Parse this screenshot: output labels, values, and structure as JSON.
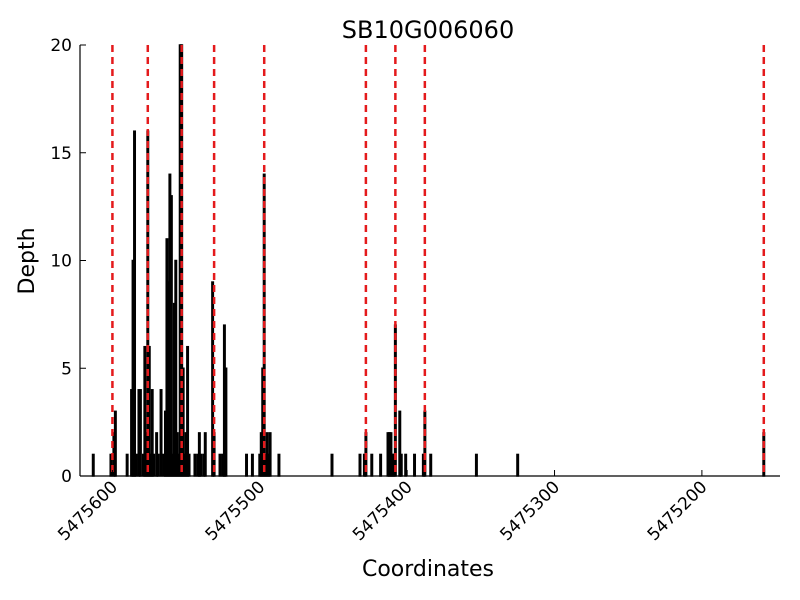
{
  "chart_data": {
    "type": "bar",
    "title": "SB10G006060",
    "xlabel": "Coordinates",
    "ylabel": "Depth",
    "xlim": [
      5475622,
      5475147
    ],
    "ylim": [
      0,
      20
    ],
    "x_reversed": true,
    "grid": false,
    "x_ticks": [
      5475600,
      5475500,
      5475400,
      5475300,
      5475200
    ],
    "x_tick_labels": [
      "5475600",
      "5475500",
      "5475400",
      "5475300",
      "5475200"
    ],
    "y_ticks": [
      0,
      5,
      10,
      15,
      20
    ],
    "y_tick_labels": [
      "0",
      "5",
      "10",
      "15",
      "20"
    ],
    "bar_color": "#000000",
    "reference_line_color": "#e41a1c",
    "reference_lines": [
      5475600,
      5475576,
      5475553,
      5475531,
      5475497,
      5475428,
      5475408,
      5475388,
      5475158
    ],
    "bars": [
      {
        "x": 5475613,
        "y": 1
      },
      {
        "x": 5475601,
        "y": 1
      },
      {
        "x": 5475599,
        "y": 2
      },
      {
        "x": 5475598,
        "y": 3
      },
      {
        "x": 5475590,
        "y": 1
      },
      {
        "x": 5475587,
        "y": 4
      },
      {
        "x": 5475586,
        "y": 10
      },
      {
        "x": 5475585,
        "y": 16
      },
      {
        "x": 5475584,
        "y": 1
      },
      {
        "x": 5475582,
        "y": 4
      },
      {
        "x": 5475581,
        "y": 4
      },
      {
        "x": 5475579,
        "y": 1
      },
      {
        "x": 5475578,
        "y": 6
      },
      {
        "x": 5475577,
        "y": 2
      },
      {
        "x": 5475576,
        "y": 16
      },
      {
        "x": 5475575,
        "y": 6
      },
      {
        "x": 5475574,
        "y": 1
      },
      {
        "x": 5475573,
        "y": 4
      },
      {
        "x": 5475572,
        "y": 1
      },
      {
        "x": 5475570,
        "y": 2
      },
      {
        "x": 5475569,
        "y": 1
      },
      {
        "x": 5475567,
        "y": 4
      },
      {
        "x": 5475565,
        "y": 1
      },
      {
        "x": 5475564,
        "y": 3
      },
      {
        "x": 5475563,
        "y": 11
      },
      {
        "x": 5475562,
        "y": 9
      },
      {
        "x": 5475561,
        "y": 14
      },
      {
        "x": 5475560,
        "y": 13
      },
      {
        "x": 5475559,
        "y": 1
      },
      {
        "x": 5475558,
        "y": 8
      },
      {
        "x": 5475557,
        "y": 10
      },
      {
        "x": 5475556,
        "y": 2
      },
      {
        "x": 5475555,
        "y": 1
      },
      {
        "x": 5475554,
        "y": 20
      },
      {
        "x": 5475553,
        "y": 20
      },
      {
        "x": 5475552,
        "y": 5
      },
      {
        "x": 5475551,
        "y": 1
      },
      {
        "x": 5475550,
        "y": 2
      },
      {
        "x": 5475549,
        "y": 6
      },
      {
        "x": 5475548,
        "y": 1
      },
      {
        "x": 5475544,
        "y": 1
      },
      {
        "x": 5475542,
        "y": 1
      },
      {
        "x": 5475541,
        "y": 2
      },
      {
        "x": 5475540,
        "y": 1
      },
      {
        "x": 5475538,
        "y": 1
      },
      {
        "x": 5475537,
        "y": 2
      },
      {
        "x": 5475532,
        "y": 9
      },
      {
        "x": 5475531,
        "y": 2
      },
      {
        "x": 5475527,
        "y": 1
      },
      {
        "x": 5475525,
        "y": 1
      },
      {
        "x": 5475524,
        "y": 7
      },
      {
        "x": 5475523,
        "y": 5
      },
      {
        "x": 5475509,
        "y": 1
      },
      {
        "x": 5475505,
        "y": 1
      },
      {
        "x": 5475500,
        "y": 1
      },
      {
        "x": 5475499,
        "y": 2
      },
      {
        "x": 5475498,
        "y": 5
      },
      {
        "x": 5475497,
        "y": 14
      },
      {
        "x": 5475496,
        "y": 1
      },
      {
        "x": 5475495,
        "y": 2
      },
      {
        "x": 5475494,
        "y": 1
      },
      {
        "x": 5475493,
        "y": 2
      },
      {
        "x": 5475487,
        "y": 1
      },
      {
        "x": 5475451,
        "y": 1
      },
      {
        "x": 5475432,
        "y": 1
      },
      {
        "x": 5475429,
        "y": 1
      },
      {
        "x": 5475428,
        "y": 2
      },
      {
        "x": 5475424,
        "y": 1
      },
      {
        "x": 5475418,
        "y": 1
      },
      {
        "x": 5475413,
        "y": 2
      },
      {
        "x": 5475412,
        "y": 2
      },
      {
        "x": 5475411,
        "y": 2
      },
      {
        "x": 5475410,
        "y": 1
      },
      {
        "x": 5475409,
        "y": 1
      },
      {
        "x": 5475408,
        "y": 7
      },
      {
        "x": 5475405,
        "y": 3
      },
      {
        "x": 5475404,
        "y": 1
      },
      {
        "x": 5475401,
        "y": 1
      },
      {
        "x": 5475395,
        "y": 1
      },
      {
        "x": 5475389,
        "y": 1
      },
      {
        "x": 5475388,
        "y": 3
      },
      {
        "x": 5475384,
        "y": 1
      },
      {
        "x": 5475353,
        "y": 1
      },
      {
        "x": 5475325,
        "y": 1
      },
      {
        "x": 5475158,
        "y": 2
      }
    ]
  }
}
